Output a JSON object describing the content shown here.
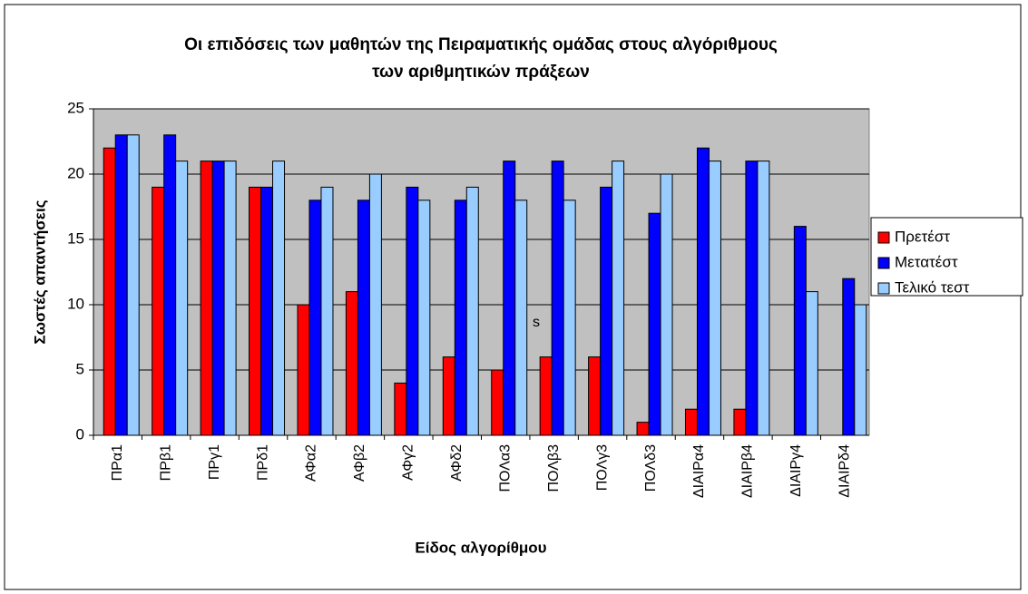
{
  "chart_data": {
    "type": "bar",
    "title": [
      "Οι επιδόσεις των μαθητών της Πειραματικής ομάδας στους αλγόριθμους",
      "των αριθμητικών πράξεων"
    ],
    "ylabel": "Σωστές απαντήσεις",
    "xlabel": "Είδος αλγορίθμου",
    "annotation": "s",
    "categories": [
      "ΠΡα1",
      "ΠΡβ1",
      "ΠΡγ1",
      "ΠΡδ1",
      "ΑΦα2",
      "ΑΦβ2",
      "ΑΦγ2",
      "ΑΦδ2",
      "ΠΟΛα3",
      "ΠΟΛβ3",
      "ΠΟΛγ3",
      "ΠΟΛδ3",
      "ΔΙΑΙΡα4",
      "ΔΙΑΙΡβ4",
      "ΔΙΑΙΡγ4",
      "ΔΙΑΙΡδ4"
    ],
    "series": [
      {
        "name": "Πρετέστ",
        "color": "#ff0000",
        "values": [
          22,
          19,
          21,
          19,
          10,
          11,
          4,
          6,
          5,
          6,
          6,
          1,
          2,
          2,
          null,
          null
        ]
      },
      {
        "name": "Μετατέστ",
        "color": "#0000ff",
        "values": [
          23,
          23,
          21,
          19,
          18,
          18,
          19,
          18,
          21,
          21,
          19,
          17,
          22,
          21,
          16,
          12
        ]
      },
      {
        "name": "Τελικό τεστ",
        "color": "#99ccff",
        "values": [
          23,
          21,
          21,
          21,
          19,
          20,
          18,
          19,
          18,
          18,
          21,
          20,
          21,
          21,
          11,
          10
        ]
      }
    ],
    "ylim": [
      0,
      25
    ],
    "yticks": [
      0,
      5,
      10,
      15,
      20,
      25
    ],
    "grid": true,
    "legend": "right"
  }
}
